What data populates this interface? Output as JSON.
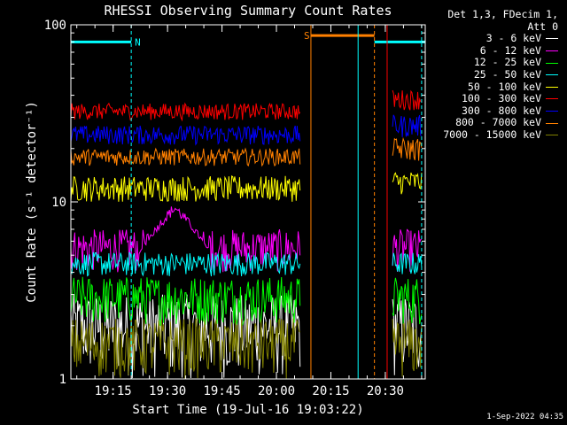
{
  "chart_data": {
    "type": "line",
    "title": "RHESSI Observing Summary Count Rates",
    "xlabel": "Start Time (19-Jul-16 19:03:22)",
    "ylabel": "Count Rate (s⁻¹ detector⁻¹)",
    "yscale": "log",
    "ylim": [
      1,
      100
    ],
    "xlim": [
      "19:03:22",
      "20:41:00"
    ],
    "x_ticks": [
      "19:15",
      "19:30",
      "19:45",
      "20:00",
      "20:15",
      "20:30"
    ],
    "y_ticks": [
      "1",
      "10",
      "100"
    ],
    "grid": false,
    "legend_position": "top-right",
    "legend_header": [
      "Det 1,3, FDecim 1,",
      "Att 0"
    ],
    "series": [
      {
        "name": "3 - 6 keV",
        "color": "#ffffff",
        "segments": [
          {
            "x": [
              "19:03:22",
              "20:06:30"
            ],
            "mean": 2.0,
            "noise_low": 1.0,
            "noise_high": 3.0
          },
          {
            "x": [
              "20:32:00",
              "20:40:00"
            ],
            "mean": 2.0,
            "noise_low": 1.0,
            "noise_high": 3.0
          }
        ]
      },
      {
        "name": "6 - 12 keV",
        "color": "#ff00ff",
        "segments": [
          {
            "x": [
              "19:03:22",
              "20:06:30"
            ],
            "mean": 5.0,
            "noise_low": 4.0,
            "noise_high": 7.0
          },
          {
            "x": [
              "20:32:00",
              "20:40:00"
            ],
            "mean": 5.0,
            "noise_low": 4.0,
            "noise_high": 7.0
          }
        ],
        "bump": {
          "peak_time": "19:32:00",
          "peak": 10.0
        }
      },
      {
        "name": "12 - 25 keV",
        "color": "#00ff00",
        "segments": [
          {
            "x": [
              "19:03:22",
              "20:06:30"
            ],
            "mean": 3.0,
            "noise_low": 2.0,
            "noise_high": 3.8
          },
          {
            "x": [
              "20:32:00",
              "20:40:00"
            ],
            "mean": 3.0,
            "noise_low": 2.0,
            "noise_high": 3.8
          }
        ]
      },
      {
        "name": "25 - 50 keV",
        "color": "#00ffff",
        "segments": [
          {
            "x": [
              "19:03:22",
              "20:06:30"
            ],
            "mean": 4.5,
            "noise_low": 3.8,
            "noise_high": 5.2
          },
          {
            "x": [
              "20:32:00",
              "20:40:00"
            ],
            "mean": 4.5,
            "noise_low": 3.8,
            "noise_high": 5.2
          }
        ]
      },
      {
        "name": "50 - 100 keV",
        "color": "#ffff00",
        "segments": [
          {
            "x": [
              "19:03:22",
              "20:06:30"
            ],
            "mean": 12.0,
            "noise_low": 10.0,
            "noise_high": 14.0
          },
          {
            "x": [
              "20:32:00",
              "20:40:00"
            ],
            "mean": 13.0,
            "noise_low": 11.0,
            "noise_high": 15.0
          }
        ]
      },
      {
        "name": "100 - 300 keV",
        "color": "#ff0000",
        "segments": [
          {
            "x": [
              "19:03:22",
              "20:06:30"
            ],
            "mean": 32.0,
            "noise_low": 29.0,
            "noise_high": 36.0
          },
          {
            "x": [
              "20:32:00",
              "20:40:00"
            ],
            "mean": 38.0,
            "noise_low": 33.0,
            "noise_high": 43.0
          }
        ]
      },
      {
        "name": "300 - 800 keV",
        "color": "#0000ff",
        "segments": [
          {
            "x": [
              "19:03:22",
              "20:06:30"
            ],
            "mean": 24.0,
            "noise_low": 21.0,
            "noise_high": 27.0
          },
          {
            "x": [
              "20:32:00",
              "20:40:00"
            ],
            "mean": 27.0,
            "noise_low": 23.0,
            "noise_high": 31.0
          }
        ]
      },
      {
        "name": "800 - 7000 keV",
        "color": "#ff8000",
        "segments": [
          {
            "x": [
              "19:03:22",
              "20:06:30"
            ],
            "mean": 18.0,
            "noise_low": 16.0,
            "noise_high": 20.0
          },
          {
            "x": [
              "20:32:00",
              "20:40:00"
            ],
            "mean": 20.0,
            "noise_low": 17.0,
            "noise_high": 23.0
          }
        ]
      },
      {
        "name": "7000 - 15000 keV",
        "color": "#808000",
        "segments": [
          {
            "x": [
              "19:03:22",
              "20:06:30"
            ],
            "mean": 1.6,
            "noise_low": 1.0,
            "noise_high": 2.2
          },
          {
            "x": [
              "20:32:00",
              "20:40:00"
            ],
            "mean": 1.6,
            "noise_low": 1.0,
            "noise_high": 2.2
          }
        ]
      }
    ],
    "annotations": [
      {
        "type": "bar",
        "label": "N",
        "color": "#00ffff",
        "x": [
          "19:03:22",
          "19:20:00"
        ],
        "y": 80
      },
      {
        "type": "bar",
        "label": "S",
        "color": "#ff8000",
        "x": [
          "20:09:30",
          "20:27:00"
        ],
        "y": 87
      },
      {
        "type": "bar",
        "label": "",
        "color": "#00ffff",
        "x": [
          "20:27:00",
          "20:41:00"
        ],
        "y": 80
      },
      {
        "type": "vline",
        "style": "dashed",
        "color": "#00ffff",
        "x": "19:20:00"
      },
      {
        "type": "vline",
        "style": "solid",
        "color": "#ff8000",
        "x": "20:09:30"
      },
      {
        "type": "vline",
        "style": "solid",
        "color": "#00ffff",
        "x": "20:22:30"
      },
      {
        "type": "vline",
        "style": "dashed",
        "color": "#ff8000",
        "x": "20:27:00"
      },
      {
        "type": "vline",
        "style": "solid",
        "color": "#ff0000",
        "x": "20:30:30"
      },
      {
        "type": "vline",
        "style": "dashed",
        "color": "#00ffff",
        "x": "20:40:00"
      }
    ]
  },
  "timestamp": "1-Sep-2022 04:35"
}
